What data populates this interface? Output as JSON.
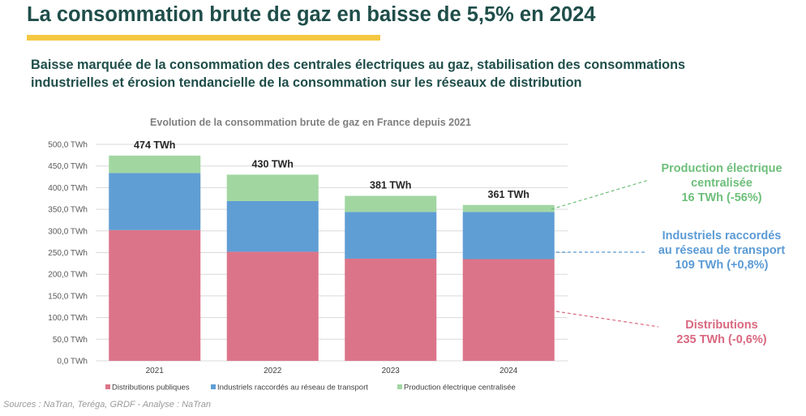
{
  "header": {
    "title": "La consommation brute de gaz en baisse de 5,5% en 2024",
    "subtitle_line1": "Baisse marquée de la consommation des centrales électriques au gaz, stabilisation des consommations",
    "subtitle_line2": "industrielles et érosion tendancielle de la consommation sur les réseaux de distribution"
  },
  "chart_data": {
    "type": "bar",
    "stacked": true,
    "title": "Evolution de la consommation brute de gaz en France depuis 2021",
    "categories": [
      "2021",
      "2022",
      "2023",
      "2024"
    ],
    "totals_labels": [
      "474 TWh",
      "430 TWh",
      "381 TWh",
      "361 TWh"
    ],
    "series": [
      {
        "name": "Distributions publiques",
        "color": "#dc7489",
        "values": [
          302,
          252,
          236,
          235
        ]
      },
      {
        "name": "Industriels raccordés au réseau de transport",
        "color": "#5f9ed4",
        "values": [
          132,
          117,
          108,
          109
        ]
      },
      {
        "name": "Production électrique centralisée",
        "color": "#a1d6a1",
        "values": [
          40,
          61,
          37,
          16
        ]
      }
    ],
    "ylim": [
      0,
      500
    ],
    "yticks": [
      "0,0 TWh",
      "50,0 TWh",
      "100,0 TWh",
      "150,0 TWh",
      "200,0 TWh",
      "250,0 TWh",
      "300,0 TWh",
      "350,0 TWh",
      "400,0 TWh",
      "450,0 TWh",
      "500,0 TWh"
    ],
    "ytick_values": [
      0,
      50,
      100,
      150,
      200,
      250,
      300,
      350,
      400,
      450,
      500
    ],
    "grid": true,
    "legend": "bottom"
  },
  "annotations": {
    "production": {
      "line1": "Production électrique",
      "line2": "centralisée",
      "line3": "16 TWh (-56%)",
      "color": "#6dbf7a"
    },
    "industriels": {
      "line1": "Industriels raccordés",
      "line2": "au réseau de transport",
      "line3": "109 TWh (+0,8%)",
      "color": "#5b9bd5"
    },
    "distributions": {
      "line1": "Distributions",
      "line2": "235 TWh (-0,6%)",
      "color": "#d9687f"
    }
  },
  "source": "Sources : NaTran, Teréga, GRDF - Analyse : NaTran"
}
